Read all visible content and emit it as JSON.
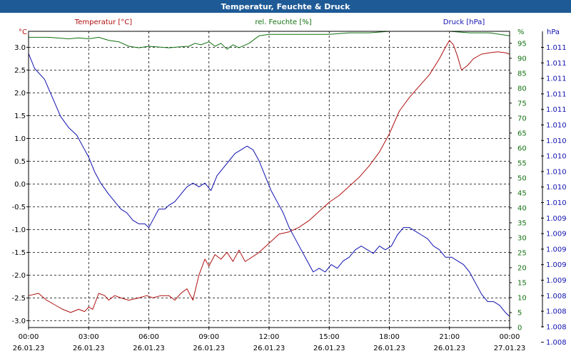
{
  "window": {
    "title": "Temperatur, Feuchte & Druck"
  },
  "chart_data": {
    "type": "line",
    "title": "Temperatur, Feuchte & Druck",
    "grid": true,
    "axes": {
      "temperature": {
        "unit_label": "°C",
        "label": "Temperatur [°C]",
        "range": [
          -3.15,
          3.35
        ],
        "ticks": [
          3.0,
          2.5,
          2.0,
          1.5,
          1.0,
          0.5,
          0.0,
          -0.5,
          -1.0,
          -1.5,
          -2.0,
          -2.5,
          -3.0
        ],
        "tick_labels": [
          "3.0",
          "2.5",
          "2.0",
          "1.5",
          "1.0",
          "0.5",
          "0.0",
          "-0.5",
          "-1.0",
          "-1.5",
          "-2.0",
          "-2.5",
          "-3.0"
        ],
        "color": "#b01010"
      },
      "humidity": {
        "unit_label": "%",
        "label": "rel. Feuchte [%]",
        "range": [
          0,
          99
        ],
        "ticks": [
          95,
          90,
          85,
          80,
          75,
          70,
          65,
          60,
          55,
          50,
          45,
          40,
          35,
          30,
          25,
          20,
          15,
          10,
          5,
          0
        ],
        "tick_labels": [
          "95",
          "90",
          "85",
          "80",
          "75",
          "70",
          "65",
          "60",
          "55",
          "50",
          "45",
          "40",
          "35",
          "30",
          "25",
          "20",
          "15",
          "10",
          "5",
          "0"
        ],
        "color": "#107010"
      },
      "pressure": {
        "unit_label": "hPa",
        "label": "Druck [hPa]",
        "range": [
          1007.5,
          1011.5
        ],
        "ticks": [
          0,
          1,
          2,
          3,
          4,
          5,
          6,
          7,
          8,
          9,
          10,
          11,
          12,
          13,
          14,
          15,
          16,
          17,
          18,
          19
        ],
        "tick_labels": [
          "1.011",
          "1.011",
          "1.011",
          "1.011",
          "1.011",
          "1.010",
          "1.010",
          "1.010",
          "1.010",
          "1.010",
          "1.010",
          "1.009",
          "1.009",
          "1.009",
          "1.009",
          "1.009",
          "1.008",
          "1.008",
          "1.008",
          "1.008"
        ],
        "color": "#1010b0"
      }
    },
    "x_ticks": [
      {
        "time": "00:00",
        "date": "26.01.23"
      },
      {
        "time": "03:00",
        "date": "26.01.23"
      },
      {
        "time": "06:00",
        "date": "26.01.23"
      },
      {
        "time": "09:00",
        "date": "26.01.23"
      },
      {
        "time": "12:00",
        "date": "26.01.23"
      },
      {
        "time": "15:00",
        "date": "26.01.23"
      },
      {
        "time": "18:00",
        "date": "26.01.23"
      },
      {
        "time": "21:00",
        "date": "26.01.23"
      },
      {
        "time": "00:00",
        "date": "27.01.23"
      }
    ],
    "x_range_hours": [
      0,
      24
    ],
    "series": [
      {
        "name": "Temperatur [°C]",
        "axis": "temperature",
        "color": "#b01010",
        "x": [
          0,
          0.5,
          0.9,
          1.3,
          1.7,
          2.1,
          2.5,
          2.8,
          3.0,
          3.2,
          3.5,
          3.8,
          4.0,
          4.3,
          4.6,
          5.0,
          5.5,
          5.9,
          6.2,
          6.6,
          7.0,
          7.3,
          7.6,
          7.9,
          8.2,
          8.5,
          8.8,
          9.0,
          9.3,
          9.6,
          9.9,
          10.2,
          10.5,
          10.8,
          11.0,
          11.5,
          12.0,
          12.5,
          13.0,
          13.5,
          14.0,
          14.5,
          15.0,
          15.5,
          16.0,
          16.5,
          17.0,
          17.5,
          18.0,
          18.5,
          19.0,
          19.5,
          20.0,
          20.5,
          20.8,
          21.0,
          21.2,
          21.4,
          21.6,
          21.9,
          22.2,
          22.6,
          23.0,
          23.4,
          23.8,
          24.0
        ],
        "y": [
          -2.45,
          -2.4,
          -2.55,
          -2.65,
          -2.75,
          -2.82,
          -2.75,
          -2.8,
          -2.7,
          -2.75,
          -2.4,
          -2.45,
          -2.55,
          -2.45,
          -2.5,
          -2.55,
          -2.5,
          -2.45,
          -2.5,
          -2.45,
          -2.45,
          -2.55,
          -2.4,
          -2.3,
          -2.55,
          -2.0,
          -1.65,
          -1.8,
          -1.55,
          -1.65,
          -1.5,
          -1.7,
          -1.45,
          -1.7,
          -1.65,
          -1.5,
          -1.3,
          -1.1,
          -1.05,
          -0.95,
          -0.8,
          -0.6,
          -0.4,
          -0.25,
          -0.05,
          0.15,
          0.4,
          0.7,
          1.1,
          1.6,
          1.9,
          2.15,
          2.4,
          2.75,
          3.0,
          3.15,
          3.05,
          2.8,
          2.5,
          2.6,
          2.75,
          2.85,
          2.88,
          2.9,
          2.88,
          2.85
        ]
      },
      {
        "name": "rel. Feuchte [%]",
        "axis": "humidity",
        "color": "#107010",
        "x": [
          0,
          1,
          2,
          2.5,
          3,
          3.5,
          4,
          4.5,
          5,
          5.5,
          6,
          7,
          7.5,
          8,
          8.3,
          8.6,
          9,
          9.3,
          9.6,
          9.9,
          10.2,
          10.5,
          11,
          11.5,
          12,
          13,
          14,
          15,
          16,
          17,
          18,
          19,
          20,
          21,
          22,
          23,
          24
        ],
        "y": [
          97,
          97,
          96.5,
          96.8,
          96.5,
          97,
          96,
          95.5,
          94,
          93.5,
          94,
          93.5,
          93.8,
          94,
          95,
          94.5,
          95.5,
          94,
          95,
          93,
          94.5,
          93.5,
          95,
          97.5,
          98,
          98,
          98,
          98,
          98.5,
          98.5,
          99,
          99,
          99,
          99,
          98.5,
          98.5,
          97.5
        ]
      },
      {
        "name": "Druck [hPa]",
        "axis": "pressure",
        "color": "#1010b0",
        "x": [
          0,
          0.3,
          0.8,
          1.2,
          1.6,
          2.0,
          2.4,
          2.7,
          3.0,
          3.3,
          3.6,
          4.0,
          4.3,
          4.6,
          4.9,
          5.2,
          5.5,
          5.8,
          6.0,
          6.2,
          6.5,
          6.8,
          7.0,
          7.3,
          7.6,
          7.9,
          8.2,
          8.5,
          8.8,
          9.1,
          9.4,
          9.7,
          10.0,
          10.3,
          10.6,
          10.9,
          11.2,
          11.5,
          11.8,
          12.1,
          12.4,
          12.7,
          13.0,
          13.3,
          13.6,
          13.9,
          14.2,
          14.5,
          14.8,
          15.1,
          15.4,
          15.7,
          16.0,
          16.3,
          16.6,
          16.9,
          17.2,
          17.5,
          17.8,
          18.1,
          18.4,
          18.7,
          19.0,
          19.3,
          19.6,
          19.9,
          20.2,
          20.5,
          20.8,
          21.1,
          21.4,
          21.7,
          22.0,
          22.3,
          22.6,
          22.9,
          23.2,
          23.5,
          23.8,
          24.0
        ],
        "y": [
          1011.2,
          1011.0,
          1010.85,
          1010.6,
          1010.35,
          1010.2,
          1010.1,
          1009.95,
          1009.8,
          1009.6,
          1009.45,
          1009.3,
          1009.2,
          1009.1,
          1009.05,
          1008.95,
          1008.9,
          1008.9,
          1008.85,
          1008.95,
          1009.1,
          1009.1,
          1009.15,
          1009.2,
          1009.3,
          1009.4,
          1009.45,
          1009.4,
          1009.45,
          1009.35,
          1009.55,
          1009.65,
          1009.75,
          1009.85,
          1009.9,
          1009.95,
          1009.9,
          1009.75,
          1009.55,
          1009.35,
          1009.2,
          1009.05,
          1008.85,
          1008.7,
          1008.55,
          1008.4,
          1008.25,
          1008.3,
          1008.25,
          1008.35,
          1008.3,
          1008.4,
          1008.45,
          1008.55,
          1008.6,
          1008.55,
          1008.5,
          1008.6,
          1008.55,
          1008.6,
          1008.75,
          1008.85,
          1008.85,
          1008.8,
          1008.75,
          1008.7,
          1008.6,
          1008.55,
          1008.45,
          1008.45,
          1008.4,
          1008.35,
          1008.25,
          1008.1,
          1007.95,
          1007.85,
          1007.85,
          1007.8,
          1007.7,
          1007.65
        ]
      }
    ]
  }
}
